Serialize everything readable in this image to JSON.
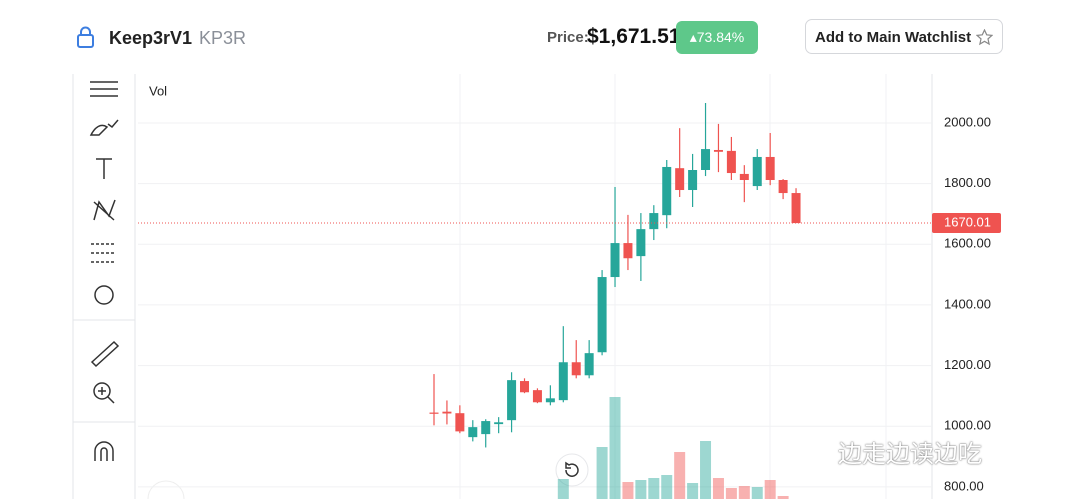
{
  "header": {
    "name": "Keep3rV1",
    "symbol": "KP3R",
    "price_label": "Price:",
    "price": "$1,671.51",
    "change": "▴73.84%",
    "button": "Add to Main Watchlist"
  },
  "chart_data": {
    "type": "candlestick",
    "volume_label": "Vol",
    "open": [
      1045,
      1048,
      1043,
      964,
      974,
      1007,
      1020,
      1149,
      1119,
      1079,
      1086,
      1211,
      1168,
      1244,
      1492,
      1604,
      1561,
      1650,
      1696,
      1851,
      1779,
      1845,
      1911,
      1908,
      1832,
      1792,
      1888,
      1812,
      1769
    ],
    "close": [
      1041,
      1042,
      983,
      997,
      1017,
      1013,
      1152,
      1112,
      1079,
      1092,
      1211,
      1168,
      1241,
      1492,
      1604,
      1554,
      1650,
      1703,
      1855,
      1779,
      1845,
      1914,
      1905,
      1835,
      1812,
      1888,
      1812,
      1769,
      1670
    ],
    "high": [
      1172,
      1085,
      1069,
      1020,
      1023,
      1030,
      1178,
      1158,
      1125,
      1135,
      1330,
      1284,
      1284,
      1515,
      1789,
      1697,
      1703,
      1729,
      1878,
      1983,
      1898,
      2066,
      1997,
      1954,
      1861,
      1914,
      1967,
      1815,
      1785
    ],
    "low": [
      1003,
      1006,
      977,
      950,
      930,
      977,
      980,
      1109,
      1076,
      1069,
      1079,
      1158,
      1158,
      1234,
      1459,
      1515,
      1479,
      1614,
      1653,
      1756,
      1723,
      1825,
      1838,
      1812,
      1739,
      1779,
      1795,
      1749,
      1670
    ],
    "volume": [
      null,
      null,
      null,
      null,
      null,
      null,
      null,
      null,
      null,
      null,
      20,
      null,
      null,
      52,
      102,
      17,
      19,
      21,
      24,
      47,
      16,
      58,
      21,
      11,
      13,
      12,
      19,
      3,
      null
    ],
    "vlim": [
      0,
      130
    ],
    "ylim": [
      760,
      2155
    ],
    "yticks": [
      {
        "value": 800,
        "label": "800.00"
      },
      {
        "value": 1000,
        "label": "1000.00"
      },
      {
        "value": 1200,
        "label": "1200.00"
      },
      {
        "value": 1400,
        "label": "1400.00"
      },
      {
        "value": 1600,
        "label": "1600.00"
      },
      {
        "value": 1800,
        "label": "1800.00"
      },
      {
        "value": 2000,
        "label": "2000.00"
      }
    ],
    "last_price": 1670.01,
    "up_color": "#26a69a",
    "down_color": "#ef5350",
    "grid": true
  },
  "watermark": "边走边读边吃"
}
